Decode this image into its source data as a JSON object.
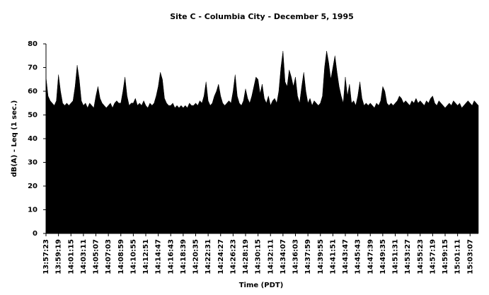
{
  "chart_data": {
    "type": "area",
    "title": "Site C - Columbia City - December 5, 1995",
    "xlabel": "Time (PDT)",
    "ylabel": "dB(A) - Leq (1 sec.)",
    "color": "#000000",
    "ylim": [
      0,
      80
    ],
    "yticks": [
      0,
      10,
      20,
      30,
      40,
      50,
      60,
      70,
      80
    ],
    "grid": false,
    "categories": [
      "13:57:23",
      null,
      null,
      null,
      null,
      null,
      "13:59:19",
      null,
      null,
      null,
      null,
      null,
      "14:01:15",
      null,
      null,
      null,
      null,
      null,
      "14:03:11",
      null,
      null,
      null,
      null,
      null,
      "14:05:07",
      null,
      null,
      null,
      null,
      null,
      "14:07:03",
      null,
      null,
      null,
      null,
      null,
      "14:08:59",
      null,
      null,
      null,
      null,
      null,
      "14:10:55",
      null,
      null,
      null,
      null,
      null,
      "14:12:51",
      null,
      null,
      null,
      null,
      null,
      "14:14:47",
      null,
      null,
      null,
      null,
      null,
      "14:16:43",
      null,
      null,
      null,
      null,
      null,
      "14:18:39",
      null,
      null,
      null,
      null,
      null,
      "14:20:35",
      null,
      null,
      null,
      null,
      null,
      "14:22:31",
      null,
      null,
      null,
      null,
      null,
      "14:24:27",
      null,
      null,
      null,
      null,
      null,
      "14:26:23",
      null,
      null,
      null,
      null,
      null,
      "14:28:19",
      null,
      null,
      null,
      null,
      null,
      "14:30:15",
      null,
      null,
      null,
      null,
      null,
      "14:32:11",
      null,
      null,
      null,
      null,
      null,
      "14:34:07",
      null,
      null,
      null,
      null,
      null,
      "14:36:03",
      null,
      null,
      null,
      null,
      null,
      "14:37:59",
      null,
      null,
      null,
      null,
      null,
      "14:39:55",
      null,
      null,
      null,
      null,
      null,
      "14:41:51",
      null,
      null,
      null,
      null,
      null,
      "14:43:47",
      null,
      null,
      null,
      null,
      null,
      "14:45:43",
      null,
      null,
      null,
      null,
      null,
      "14:47:39",
      null,
      null,
      null,
      null,
      null,
      "14:49:35",
      null,
      null,
      null,
      null,
      null,
      "14:51:31",
      null,
      null,
      null,
      null,
      null,
      "14:53:27",
      null,
      null,
      null,
      null,
      null,
      "14:55:23",
      null,
      null,
      null,
      null,
      null,
      "14:57:19",
      null,
      null,
      null,
      null,
      null,
      "14:59:15",
      null,
      null,
      null,
      null,
      null,
      "15:01:11",
      null,
      null,
      null,
      null,
      null,
      "15:03:07",
      null,
      null,
      null,
      null
    ],
    "values": [
      66,
      58,
      56,
      55,
      54,
      56,
      67,
      60,
      55,
      54,
      55,
      54,
      55,
      56,
      62,
      71,
      65,
      56,
      54,
      55,
      53,
      55,
      54,
      53,
      58,
      62,
      57,
      55,
      54,
      53,
      54,
      55,
      53,
      55,
      56,
      55,
      55,
      60,
      66,
      58,
      54,
      55,
      55,
      57,
      54,
      55,
      54,
      56,
      54,
      53,
      55,
      54,
      55,
      58,
      62,
      68,
      65,
      57,
      55,
      54,
      54,
      55,
      53,
      54,
      53,
      54,
      53,
      54,
      53,
      55,
      54,
      54,
      55,
      54,
      56,
      55,
      58,
      64,
      56,
      54,
      55,
      58,
      60,
      63,
      58,
      55,
      54,
      55,
      56,
      55,
      60,
      67,
      58,
      55,
      54,
      56,
      61,
      57,
      55,
      58,
      62,
      66,
      65,
      59,
      63,
      57,
      55,
      58,
      54,
      56,
      57,
      55,
      60,
      70,
      77,
      64,
      62,
      69,
      66,
      62,
      66,
      58,
      55,
      62,
      68,
      60,
      55,
      57,
      54,
      56,
      55,
      54,
      55,
      58,
      70,
      77,
      72,
      65,
      70,
      75,
      68,
      62,
      58,
      55,
      66,
      58,
      63,
      55,
      56,
      54,
      58,
      64,
      57,
      54,
      55,
      54,
      55,
      54,
      53,
      55,
      54,
      56,
      62,
      60,
      55,
      54,
      55,
      54,
      55,
      56,
      58,
      57,
      55,
      56,
      55,
      54,
      56,
      55,
      57,
      55,
      56,
      55,
      54,
      56,
      55,
      57,
      58,
      55,
      54,
      56,
      55,
      54,
      53,
      54,
      55,
      54,
      56,
      55,
      54,
      55,
      53,
      54,
      55,
      56,
      55,
      54,
      56,
      55,
      54
    ]
  }
}
